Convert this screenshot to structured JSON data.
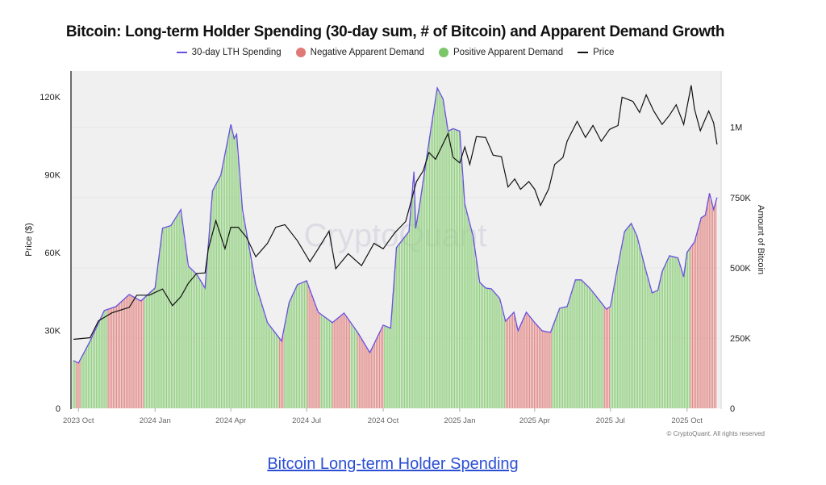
{
  "chart_data": {
    "type": "bar+line",
    "title": "Bitcoin: Long-term Holder Spending (30-day sum, # of Bitcoin) and Apparent Demand Growth",
    "legend": [
      {
        "name": "30-day LTH Spending",
        "color": "#6a4fe0",
        "shape": "line"
      },
      {
        "name": "Negative Apparent Demand",
        "color": "#e07a76",
        "shape": "dot"
      },
      {
        "name": "Positive Apparent Demand",
        "color": "#7cc66a",
        "shape": "dot"
      },
      {
        "name": "Price",
        "color": "#111111",
        "shape": "line"
      }
    ],
    "legend_placement": "top-center",
    "ylabel": "Price ($)",
    "y2label": "Amount of Bitcoin",
    "xlim": [
      "2023-09-22",
      "2025-11-10"
    ],
    "ylim": [
      0,
      130000
    ],
    "y2lim": [
      0,
      1200000
    ],
    "grid": true,
    "xticks": [
      {
        "date": "2023-10-01",
        "label": "2023 Oct"
      },
      {
        "date": "2024-01-01",
        "label": "2024 Jan"
      },
      {
        "date": "2024-04-01",
        "label": "2024 Apr"
      },
      {
        "date": "2024-07-01",
        "label": "2024 Jul"
      },
      {
        "date": "2024-10-01",
        "label": "2024 Oct"
      },
      {
        "date": "2025-01-01",
        "label": "2025 Jan"
      },
      {
        "date": "2025-04-01",
        "label": "2025 Apr"
      },
      {
        "date": "2025-07-01",
        "label": "2025 Jul"
      },
      {
        "date": "2025-10-01",
        "label": "2025 Oct"
      }
    ],
    "yticks": [
      {
        "v": 0,
        "label": "0"
      },
      {
        "v": 30000,
        "label": "30K"
      },
      {
        "v": 60000,
        "label": "60K"
      },
      {
        "v": 90000,
        "label": "90K"
      },
      {
        "v": 120000,
        "label": "120K"
      }
    ],
    "y2ticks": [
      {
        "v": 0,
        "label": "0"
      },
      {
        "v": 250000,
        "label": "250K"
      },
      {
        "v": 500000,
        "label": "500K"
      },
      {
        "v": 750000,
        "label": "750K"
      },
      {
        "v": 1000000,
        "label": "1M"
      }
    ],
    "lth_spending": [
      [
        "2023-09-25",
        170000
      ],
      [
        "2023-10-01",
        161000
      ],
      [
        "2023-10-15",
        239000
      ],
      [
        "2023-11-01",
        348000
      ],
      [
        "2023-11-15",
        362000
      ],
      [
        "2023-12-01",
        405000
      ],
      [
        "2023-12-15",
        382000
      ],
      [
        "2024-01-01",
        428000
      ],
      [
        "2024-01-10",
        641000
      ],
      [
        "2024-01-20",
        650000
      ],
      [
        "2024-02-01",
        707000
      ],
      [
        "2024-02-10",
        506000
      ],
      [
        "2024-02-20",
        477000
      ],
      [
        "2024-03-01",
        428000
      ],
      [
        "2024-03-10",
        773000
      ],
      [
        "2024-03-20",
        830000
      ],
      [
        "2024-04-01",
        1010000
      ],
      [
        "2024-04-05",
        960000
      ],
      [
        "2024-04-08",
        975000
      ],
      [
        "2024-04-15",
        707000
      ],
      [
        "2024-05-01",
        440000
      ],
      [
        "2024-05-15",
        305000
      ],
      [
        "2024-06-01",
        239000
      ],
      [
        "2024-06-10",
        376000
      ],
      [
        "2024-06-20",
        440000
      ],
      [
        "2024-07-01",
        454000
      ],
      [
        "2024-07-15",
        342000
      ],
      [
        "2024-08-01",
        305000
      ],
      [
        "2024-08-15",
        339000
      ],
      [
        "2024-09-01",
        267000
      ],
      [
        "2024-09-15",
        198000
      ],
      [
        "2024-10-01",
        296000
      ],
      [
        "2024-10-10",
        285000
      ],
      [
        "2024-10-17",
        572000
      ],
      [
        "2024-11-01",
        629000
      ],
      [
        "2024-11-07",
        842000
      ],
      [
        "2024-11-09",
        640000
      ],
      [
        "2024-11-14",
        727000
      ],
      [
        "2024-11-27",
        986000
      ],
      [
        "2024-12-05",
        1140000
      ],
      [
        "2024-12-12",
        1100000
      ],
      [
        "2024-12-18",
        986000
      ],
      [
        "2024-12-24",
        995000
      ],
      [
        "2025-01-01",
        986000
      ],
      [
        "2025-01-07",
        727000
      ],
      [
        "2025-01-17",
        612000
      ],
      [
        "2025-01-25",
        448000
      ],
      [
        "2025-02-01",
        428000
      ],
      [
        "2025-02-08",
        425000
      ],
      [
        "2025-02-18",
        391000
      ],
      [
        "2025-02-25",
        310000
      ],
      [
        "2025-03-07",
        342000
      ],
      [
        "2025-03-12",
        276000
      ],
      [
        "2025-03-22",
        342000
      ],
      [
        "2025-04-01",
        305000
      ],
      [
        "2025-04-10",
        276000
      ],
      [
        "2025-04-20",
        270000
      ],
      [
        "2025-05-01",
        356000
      ],
      [
        "2025-05-10",
        362000
      ],
      [
        "2025-05-20",
        457000
      ],
      [
        "2025-05-27",
        457000
      ],
      [
        "2025-06-06",
        428000
      ],
      [
        "2025-06-16",
        391000
      ],
      [
        "2025-06-26",
        353000
      ],
      [
        "2025-07-01",
        362000
      ],
      [
        "2025-07-08",
        477000
      ],
      [
        "2025-07-18",
        629000
      ],
      [
        "2025-07-26",
        658000
      ],
      [
        "2025-08-02",
        612000
      ],
      [
        "2025-08-12",
        497000
      ],
      [
        "2025-08-20",
        411000
      ],
      [
        "2025-08-27",
        420000
      ],
      [
        "2025-09-01",
        486000
      ],
      [
        "2025-09-10",
        543000
      ],
      [
        "2025-09-20",
        535000
      ],
      [
        "2025-09-27",
        468000
      ],
      [
        "2025-10-01",
        555000
      ],
      [
        "2025-10-10",
        592000
      ],
      [
        "2025-10-18",
        678000
      ],
      [
        "2025-10-23",
        687000
      ],
      [
        "2025-10-28",
        765000
      ],
      [
        "2025-11-02",
        707000
      ],
      [
        "2025-11-06",
        750000
      ]
    ],
    "price": [
      [
        "2023-09-25",
        26600
      ],
      [
        "2023-10-15",
        27200
      ],
      [
        "2023-10-25",
        33700
      ],
      [
        "2023-11-10",
        36800
      ],
      [
        "2023-12-01",
        38900
      ],
      [
        "2023-12-10",
        43600
      ],
      [
        "2023-12-25",
        43600
      ],
      [
        "2024-01-10",
        46000
      ],
      [
        "2024-01-22",
        39600
      ],
      [
        "2024-02-01",
        43000
      ],
      [
        "2024-02-10",
        48200
      ],
      [
        "2024-02-20",
        52000
      ],
      [
        "2024-03-01",
        52200
      ],
      [
        "2024-03-05",
        61500
      ],
      [
        "2024-03-14",
        72300
      ],
      [
        "2024-03-25",
        61500
      ],
      [
        "2024-04-01",
        69800
      ],
      [
        "2024-04-10",
        69800
      ],
      [
        "2024-04-20",
        65800
      ],
      [
        "2024-05-01",
        58400
      ],
      [
        "2024-05-15",
        63600
      ],
      [
        "2024-05-25",
        69800
      ],
      [
        "2024-06-05",
        70800
      ],
      [
        "2024-06-20",
        64600
      ],
      [
        "2024-07-05",
        56500
      ],
      [
        "2024-07-15",
        61500
      ],
      [
        "2024-07-28",
        68300
      ],
      [
        "2024-08-05",
        53800
      ],
      [
        "2024-08-20",
        59600
      ],
      [
        "2024-09-05",
        55000
      ],
      [
        "2024-09-20",
        63600
      ],
      [
        "2024-10-01",
        61500
      ],
      [
        "2024-10-15",
        67700
      ],
      [
        "2024-10-28",
        72000
      ],
      [
        "2024-11-10",
        87400
      ],
      [
        "2024-11-18",
        91500
      ],
      [
        "2024-11-25",
        98600
      ],
      [
        "2024-12-03",
        96000
      ],
      [
        "2024-12-10",
        100700
      ],
      [
        "2024-12-18",
        106000
      ],
      [
        "2024-12-24",
        96700
      ],
      [
        "2025-01-01",
        94600
      ],
      [
        "2025-01-07",
        100700
      ],
      [
        "2025-01-13",
        94000
      ],
      [
        "2025-01-21",
        104700
      ],
      [
        "2025-02-01",
        104400
      ],
      [
        "2025-02-10",
        97600
      ],
      [
        "2025-02-20",
        97000
      ],
      [
        "2025-02-28",
        85300
      ],
      [
        "2025-03-08",
        88400
      ],
      [
        "2025-03-15",
        84400
      ],
      [
        "2025-03-25",
        87400
      ],
      [
        "2025-04-01",
        84400
      ],
      [
        "2025-04-08",
        78200
      ],
      [
        "2025-04-18",
        84700
      ],
      [
        "2025-04-25",
        94000
      ],
      [
        "2025-05-05",
        96700
      ],
      [
        "2025-05-10",
        103000
      ],
      [
        "2025-05-22",
        110600
      ],
      [
        "2025-06-01",
        104400
      ],
      [
        "2025-06-10",
        109000
      ],
      [
        "2025-06-20",
        102900
      ],
      [
        "2025-06-30",
        107500
      ],
      [
        "2025-07-10",
        109000
      ],
      [
        "2025-07-15",
        119900
      ],
      [
        "2025-07-28",
        118300
      ],
      [
        "2025-08-05",
        114000
      ],
      [
        "2025-08-13",
        120800
      ],
      [
        "2025-08-22",
        114600
      ],
      [
        "2025-09-01",
        109400
      ],
      [
        "2025-09-10",
        113000
      ],
      [
        "2025-09-18",
        117000
      ],
      [
        "2025-09-27",
        109400
      ],
      [
        "2025-10-06",
        124500
      ],
      [
        "2025-10-10",
        115300
      ],
      [
        "2025-10-17",
        107000
      ],
      [
        "2025-10-27",
        114600
      ],
      [
        "2025-11-02",
        110000
      ],
      [
        "2025-11-06",
        101700
      ]
    ],
    "negative_demand_periods": [
      [
        "2023-09-28",
        "2023-10-03"
      ],
      [
        "2023-11-05",
        "2023-12-18"
      ],
      [
        "2024-05-30",
        "2024-06-03"
      ],
      [
        "2024-07-03",
        "2024-07-17"
      ],
      [
        "2024-08-01",
        "2024-08-22"
      ],
      [
        "2024-08-31",
        "2024-10-01"
      ],
      [
        "2025-02-25",
        "2025-04-22"
      ],
      [
        "2025-06-24",
        "2025-07-01"
      ],
      [
        "2025-10-06",
        "2025-11-06"
      ]
    ],
    "watermark": "CryptoQuant"
  },
  "copyright": "© CryptoQuant. All rights reserved",
  "caption_link": "Bitcoin Long-term Holder Spending"
}
